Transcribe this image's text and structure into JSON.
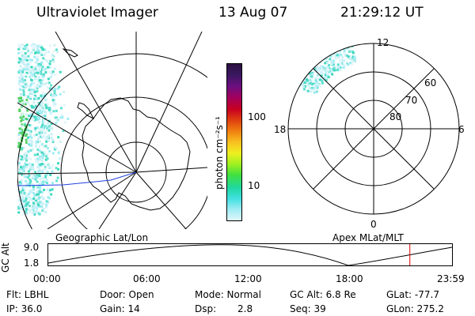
{
  "header": {
    "instrument": "Ultraviolet Imager",
    "date": "13 Aug 07",
    "time": "21:29:12 UT"
  },
  "colorbar": {
    "unit_label": "photon cm⁻²s⁻¹",
    "ticks": [
      "100",
      "10"
    ],
    "colors": [
      "#2a1040",
      "#3a1860",
      "#6a1080",
      "#a00060",
      "#c80020",
      "#e04010",
      "#f08010",
      "#f8c020",
      "#f0f020",
      "#a0f020",
      "#40e040",
      "#20d8a0",
      "#40e0e0",
      "#a0ecf4",
      "#e0f6fa"
    ]
  },
  "geo_map": {
    "label": "Geographic Lat/Lon"
  },
  "apex_map": {
    "label": "Apex MLat/MLT",
    "mlt_labels": {
      "top": "12",
      "left": "18",
      "right": "6",
      "bottom": "0"
    },
    "lat_labels": [
      "60",
      "70",
      "80"
    ]
  },
  "altitude_plot": {
    "ylabel": "GC Alt",
    "y_ticks": [
      "9.0",
      "1.8"
    ],
    "x_ticks": [
      "00:00",
      "06:00",
      "12:00",
      "18:00",
      "23:59"
    ],
    "marker_time_hours": 21.49,
    "marker_color": "#e00000"
  },
  "info": {
    "filter": "Flt: LBHL",
    "ip": "IP: 36.0",
    "door": "Door: Open",
    "gain": "Gain: 14",
    "mode": "Mode: Normal",
    "dsp_label": "Dsp:",
    "dsp_value": "2.8",
    "gc_alt": "GC Alt: 6.8 Re",
    "seq": "Seq: 39",
    "glat": "GLat: -77.7",
    "glon": "GLon: 275.2"
  }
}
